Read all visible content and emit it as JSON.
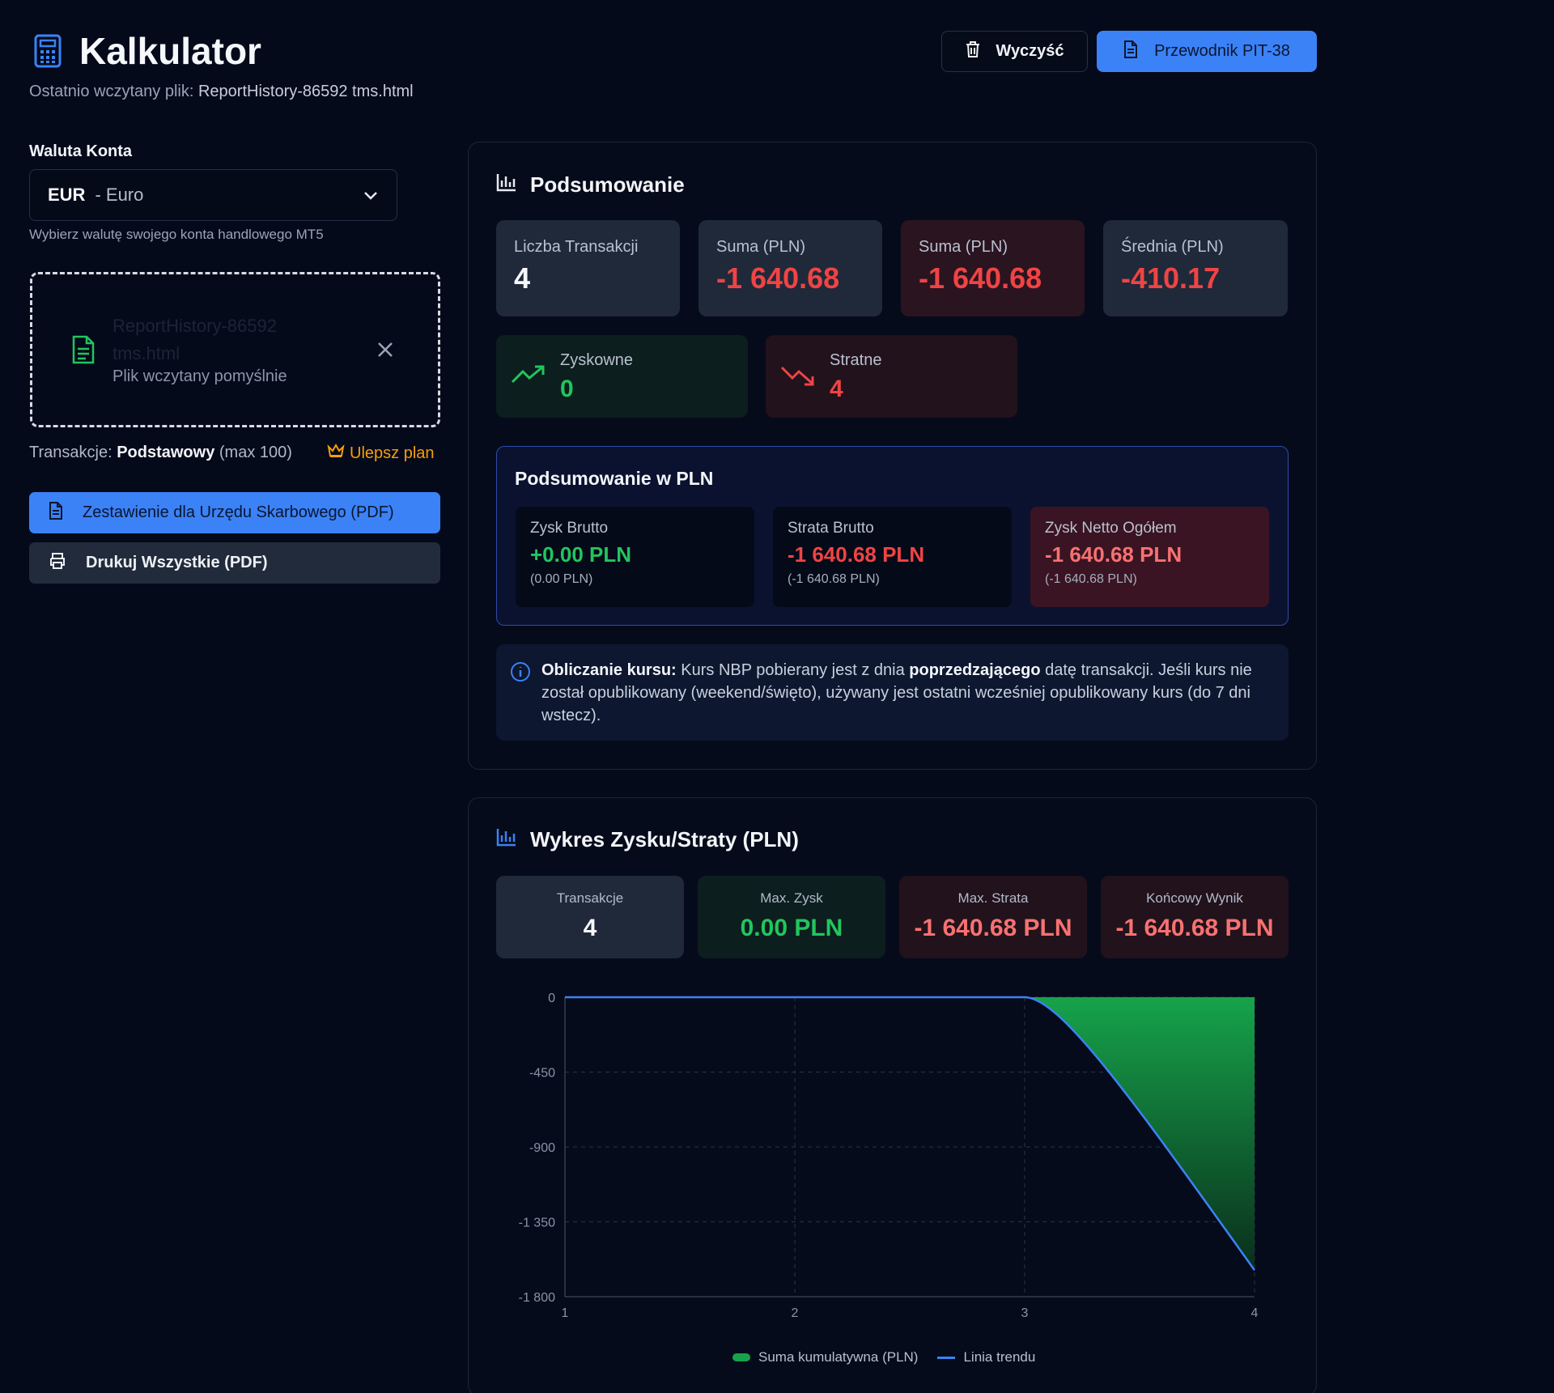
{
  "header": {
    "title": "Kalkulator",
    "subtitle_prefix": "Ostatnio wczytany plik: ",
    "subtitle_file": "ReportHistory-86592 tms.html",
    "clear_label": "Wyczyść",
    "guide_label": "Przewodnik PIT-38",
    "accent": "#3b82f6"
  },
  "sidebar": {
    "currency_label": "Waluta Konta",
    "currency_code": "EUR",
    "currency_name": "- Euro",
    "currency_hint": "Wybierz walutę swojego konta handlowego MT5",
    "file_name": "ReportHistory-86592 tms.html",
    "file_status": "Plik wczytany pomyślnie",
    "plan_prefix": "Transakcje: ",
    "plan_name": "Podstawowy",
    "plan_limit": "(max 100)",
    "upgrade_label": "Ulepsz plan",
    "pdf_button": "Zestawienie dla Urzędu Skarbowego (PDF)",
    "print_button": "Drukuj Wszystkie (PDF)"
  },
  "summary": {
    "title": "Podsumowanie",
    "cards": [
      {
        "label": "Liczba Transakcji",
        "value": "4"
      },
      {
        "label": "Suma (PLN)",
        "value": "-1 640.68"
      },
      {
        "label": "Suma (PLN)",
        "value": "-1 640.68"
      },
      {
        "label": "Średnia (PLN)",
        "value": "-410.17"
      }
    ],
    "profitable_label": "Zyskowne",
    "profitable_value": "0",
    "losing_label": "Stratne",
    "losing_value": "4"
  },
  "pln": {
    "title": "Podsumowanie w PLN",
    "gross_profit_label": "Zysk Brutto",
    "gross_profit_value": "+0.00 PLN",
    "gross_profit_sub": "(0.00 PLN)",
    "gross_loss_label": "Strata Brutto",
    "gross_loss_value": "-1 640.68 PLN",
    "gross_loss_sub": "(-1 640.68 PLN)",
    "net_label": "Zysk Netto Ogółem",
    "net_value": "-1 640.68 PLN",
    "net_sub": "(-1 640.68 PLN)"
  },
  "info": {
    "bold1": "Obliczanie kursu:",
    "text1": " Kurs NBP pobierany jest z dnia ",
    "bold2": "poprzedzającego",
    "text2": " datę transakcji. Jeśli kurs nie został opublikowany (weekend/święto), używany jest ostatni wcześniej opublikowany kurs (do 7 dni wstecz)."
  },
  "chart_section": {
    "title": "Wykres Zysku/Straty (PLN)",
    "stats": [
      {
        "label": "Transakcje",
        "value": "4"
      },
      {
        "label": "Max. Zysk",
        "value": "0.00 PLN"
      },
      {
        "label": "Max. Strata",
        "value": "-1 640.68 PLN"
      },
      {
        "label": "Końcowy Wynik",
        "value": "-1 640.68 PLN"
      }
    ]
  },
  "chart_data": {
    "type": "area",
    "x": [
      1,
      2,
      3,
      4
    ],
    "series": [
      {
        "name": "Suma kumulatywna (PLN)",
        "values": [
          0,
          0,
          0,
          -1640.68
        ]
      },
      {
        "name": "Linia trendu",
        "values": [
          0,
          0,
          0,
          -1640.68
        ]
      }
    ],
    "y_ticks": [
      "0",
      "-450",
      "-900",
      "-1 350",
      "-1 800"
    ],
    "y_tick_values": [
      0,
      -450,
      -900,
      -1350,
      -1800
    ],
    "x_ticks": [
      "1",
      "2",
      "3",
      "4"
    ],
    "xlim": [
      1,
      4
    ],
    "ylim": [
      -1800,
      0
    ],
    "grid": true,
    "legend": "bottom-center",
    "colors": {
      "area": "#16a34a",
      "line": "#3b82f6"
    }
  }
}
